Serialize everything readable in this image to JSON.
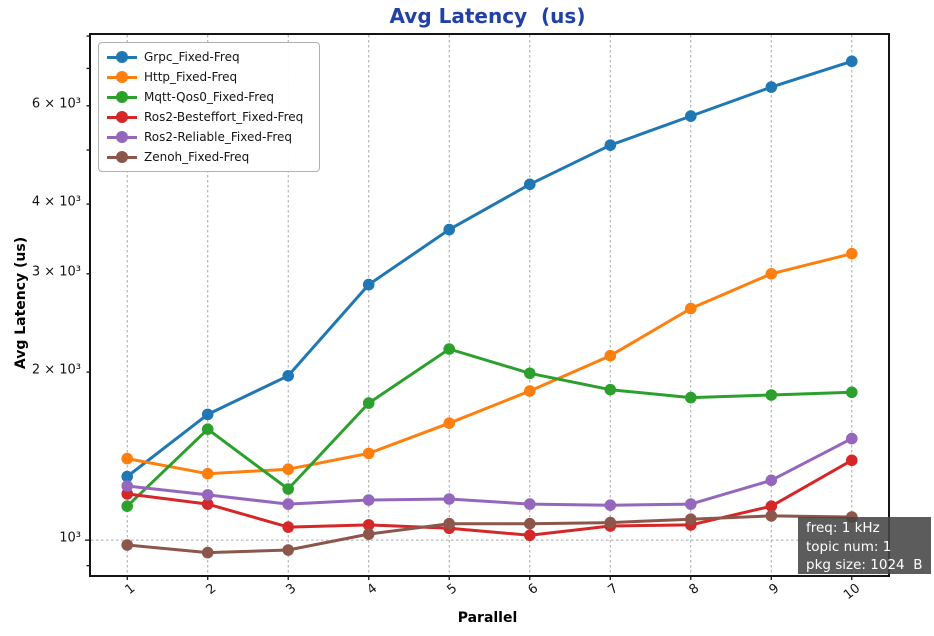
{
  "chart": {
    "title": "Avg Latency  (us)",
    "title_color": "#2141a8",
    "xlabel": "Parallel",
    "ylabel": "Avg Latency (us)",
    "annotation": {
      "lines": [
        "freq: 1 kHz",
        "topic num: 1",
        "pkg size: 1024  B"
      ],
      "bg_color": "#454545",
      "bg_opacity": 0.88,
      "text_color": "#ffffff"
    }
  },
  "chart_data": {
    "type": "line",
    "x": [
      1,
      2,
      3,
      4,
      5,
      6,
      7,
      8,
      9,
      10
    ],
    "series": [
      {
        "name": "Grpc_Fixed-Freq",
        "color": "#1f77b4",
        "values": [
          1300,
          1680,
          1970,
          2870,
          3600,
          4340,
          5100,
          5750,
          6480,
          7210
        ]
      },
      {
        "name": "Http_Fixed-Freq",
        "color": "#ff7f0e",
        "values": [
          1400,
          1315,
          1340,
          1430,
          1620,
          1850,
          2140,
          2600,
          3000,
          3260
        ]
      },
      {
        "name": "Mqtt-Qos0_Fixed-Freq",
        "color": "#2ca02c",
        "values": [
          1150,
          1580,
          1235,
          1760,
          2200,
          1990,
          1860,
          1800,
          1820,
          1840
        ]
      },
      {
        "name": "Ros2-Besteffort_Fixed-Freq",
        "color": "#d62728",
        "values": [
          1210,
          1160,
          1055,
          1065,
          1050,
          1020,
          1060,
          1065,
          1150,
          1390
        ]
      },
      {
        "name": "Ros2-Reliable_Fixed-Freq",
        "color": "#9467bd",
        "values": [
          1250,
          1205,
          1160,
          1180,
          1185,
          1160,
          1155,
          1160,
          1280,
          1520
        ]
      },
      {
        "name": "Zenoh_Fixed-Freq",
        "color": "#8c564b",
        "values": [
          980,
          950,
          960,
          1025,
          1070,
          1070,
          1075,
          1090,
          1105,
          1100
        ]
      }
    ],
    "xlabel": "Parallel",
    "ylabel": "Avg Latency (us)",
    "yscale": "log",
    "xlim": [
      0.55,
      10.45
    ],
    "ylim": [
      866,
      8035
    ],
    "x_ticks": [
      {
        "value": 1,
        "label": "1"
      },
      {
        "value": 2,
        "label": "2"
      },
      {
        "value": 3,
        "label": "3"
      },
      {
        "value": 4,
        "label": "4"
      },
      {
        "value": 5,
        "label": "5"
      },
      {
        "value": 6,
        "label": "6"
      },
      {
        "value": 7,
        "label": "7"
      },
      {
        "value": 8,
        "label": "8"
      },
      {
        "value": 9,
        "label": "9"
      },
      {
        "value": 10,
        "label": "10"
      }
    ],
    "y_ticks_major": [
      {
        "value": 1000,
        "label": "10³"
      }
    ],
    "y_ticks_minor_labeled": [
      {
        "value": 2000,
        "label": "2 × 10³"
      },
      {
        "value": 3000,
        "label": "3 × 10³"
      },
      {
        "value": 4000,
        "label": "4 × 10³"
      },
      {
        "value": 6000,
        "label": "6 × 10³"
      }
    ],
    "y_ticks_minor_unlabeled": [
      900,
      5000,
      7000,
      8000
    ],
    "grid": "vertical dashed at each x tick; horizontal dashed at 10^3",
    "legend_position": "upper-left",
    "marker": "circle",
    "line_width": 3,
    "marker_radius": 5.8
  }
}
